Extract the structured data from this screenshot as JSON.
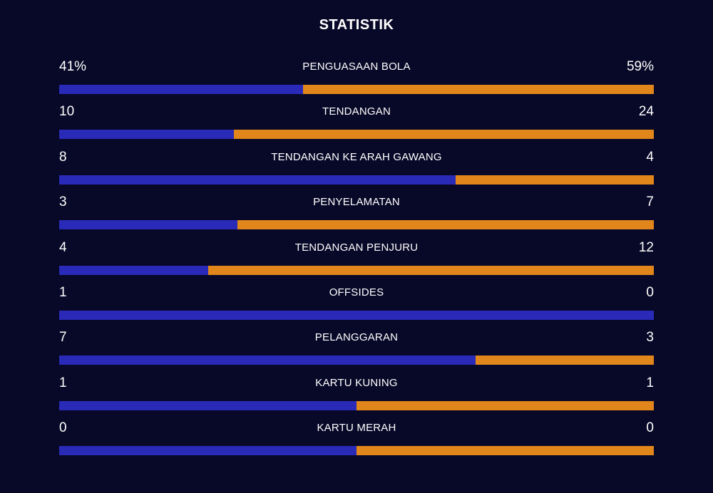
{
  "title": "STATISTIK",
  "colors": {
    "home": "#2a2ab8",
    "away": "#e0861a",
    "background": "#080828"
  },
  "stats": [
    {
      "label": "PENGUASAAN BOLA",
      "home": "41%",
      "away": "59%",
      "home_share": 0.41
    },
    {
      "label": "TENDANGAN",
      "home": "10",
      "away": "24",
      "home_share": 0.294
    },
    {
      "label": "TENDANGAN KE ARAH GAWANG",
      "home": "8",
      "away": "4",
      "home_share": 0.667
    },
    {
      "label": "PENYELAMATAN",
      "home": "3",
      "away": "7",
      "home_share": 0.3
    },
    {
      "label": "TENDANGAN PENJURU",
      "home": "4",
      "away": "12",
      "home_share": 0.25
    },
    {
      "label": "OFFSIDES",
      "home": "1",
      "away": "0",
      "home_share": 1.0
    },
    {
      "label": "PELANGGARAN",
      "home": "7",
      "away": "3",
      "home_share": 0.7
    },
    {
      "label": "KARTU KUNING",
      "home": "1",
      "away": "1",
      "home_share": 0.5
    },
    {
      "label": "KARTU MERAH",
      "home": "0",
      "away": "0",
      "home_share": 0.5
    }
  ]
}
